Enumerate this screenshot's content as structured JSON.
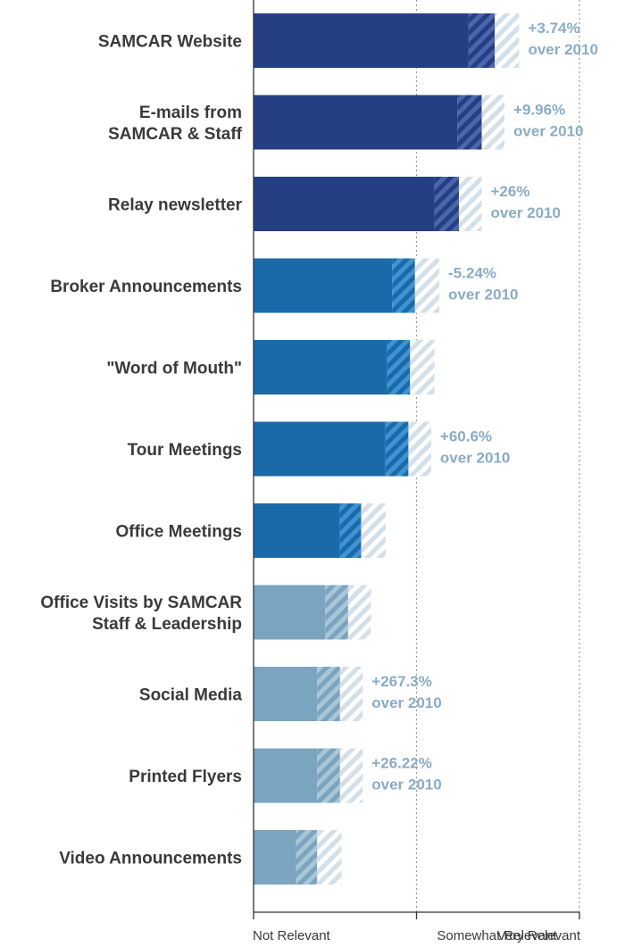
{
  "chart_data": {
    "type": "bar",
    "orientation": "horizontal",
    "x_ticks": [
      "Not Relevant",
      "Somewhat Relevant",
      "Very Relevant"
    ],
    "xlim": [
      1,
      3
    ],
    "categories": [
      [
        "SAMCAR Website"
      ],
      [
        "E-mails from",
        "SAMCAR & Staff"
      ],
      [
        "Relay newsletter"
      ],
      [
        "Broker Announcements"
      ],
      [
        "\"Word of Mouth\""
      ],
      [
        "Tour Meetings"
      ],
      [
        "Office Meetings"
      ],
      [
        "Office Visits by SAMCAR",
        "Staff & Leadership"
      ],
      [
        "Social Media"
      ],
      [
        "Printed Flyers"
      ],
      [
        "Video Announcements"
      ]
    ],
    "values": [
      2.48,
      2.4,
      2.26,
      1.99,
      1.96,
      1.95,
      1.66,
      1.58,
      1.53,
      1.53,
      1.39
    ],
    "range_low": [
      2.32,
      2.25,
      2.11,
      1.85,
      1.82,
      1.81,
      1.53,
      1.44,
      1.39,
      1.39,
      1.26
    ],
    "range_high": [
      2.63,
      2.54,
      2.4,
      2.14,
      2.11,
      2.09,
      1.81,
      1.72,
      1.67,
      1.67,
      1.54
    ],
    "changes": [
      [
        "+3.74%",
        "over 2010"
      ],
      [
        "+9.96%",
        "over 2010"
      ],
      [
        "+26%",
        "over 2010"
      ],
      [
        "-5.24%",
        "over 2010"
      ],
      null,
      [
        "+60.6%",
        "over 2010"
      ],
      null,
      null,
      [
        "+267.3%",
        "over 2010"
      ],
      [
        "+26.22%",
        "over 2010"
      ],
      null
    ],
    "groups": [
      0,
      0,
      0,
      1,
      1,
      1,
      1,
      2,
      2,
      2,
      2
    ],
    "grid": true,
    "legend": "none"
  },
  "colors": {
    "group_0": "#253f85",
    "group_1": "#1a6aaa",
    "group_2": "#7aa4bf",
    "change_text": "#8aacc6",
    "range_light": "#d3dfe9",
    "axis": "#333333",
    "grid": "#9a9a9a",
    "text": "#3a3a3a"
  }
}
